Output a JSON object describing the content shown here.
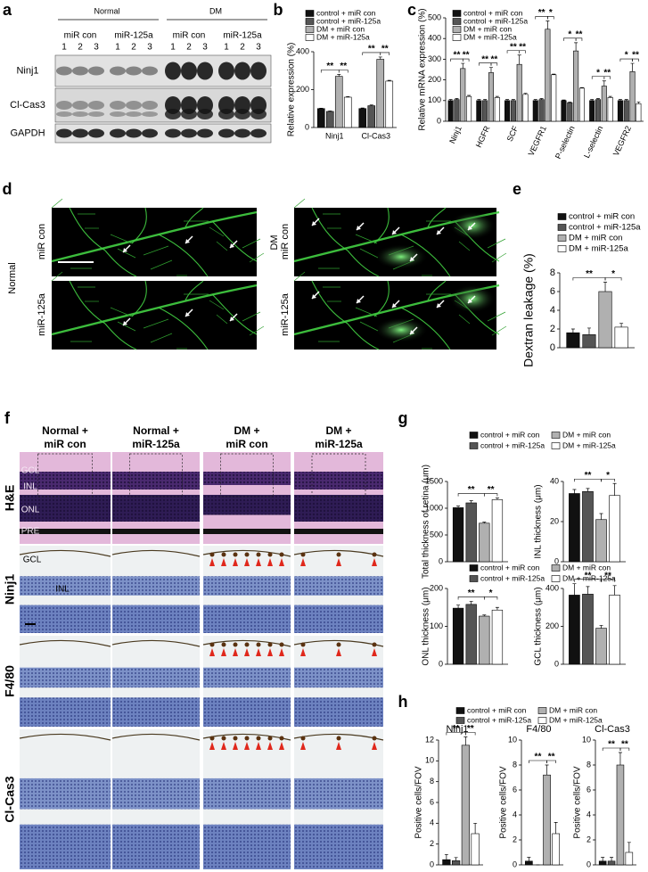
{
  "figure": {
    "panel_labels": [
      "a",
      "b",
      "c",
      "d",
      "e",
      "f",
      "g",
      "h"
    ],
    "blot": {
      "groups": [
        "Normal",
        "DM"
      ],
      "treatments": [
        "miR con",
        "miR-125a",
        "miR con",
        "miR-125a"
      ],
      "lanes": [
        "1",
        "2",
        "3",
        "1",
        "2",
        "3",
        "1",
        "2",
        "3",
        "1",
        "2",
        "3"
      ],
      "rows": [
        "Ninj1",
        "Cl-Cas3",
        "GAPDH"
      ]
    },
    "angiography": {
      "groups": [
        "Normal",
        "DM"
      ],
      "rows": [
        "miR con",
        "miR-125a"
      ]
    },
    "histology": {
      "columns": [
        [
          "Normal +",
          "miR con"
        ],
        [
          "Normal +",
          "miR-125a"
        ],
        [
          "DM +",
          "miR con"
        ],
        [
          "DM +",
          "miR-125a"
        ]
      ],
      "rows": [
        "H&E",
        "Ninj1",
        "F4/80",
        "Cl-Cas3"
      ],
      "he_layers": [
        "GCL",
        "INL",
        "ONL",
        "PRE"
      ],
      "ihc_layers": [
        "GCL",
        "INL"
      ]
    }
  },
  "chart_data": [
    {
      "type": "bar",
      "ylabel": "Relative expression (%)",
      "categories": [
        "Ninj1",
        "Cl-Cas3"
      ],
      "ylim": [
        0,
        400
      ],
      "yticks": [
        0,
        200,
        400
      ],
      "legend": "top",
      "series": [
        {
          "name": "control + miR con",
          "color": "#111111",
          "values": [
            100,
            100
          ],
          "errors": [
            2,
            3
          ]
        },
        {
          "name": "control + miR-125a",
          "color": "#555555",
          "values": [
            85,
            115
          ],
          "errors": [
            2,
            4
          ]
        },
        {
          "name": "DM + miR con",
          "color": "#b0b0b0",
          "values": [
            270,
            360
          ],
          "errors": [
            10,
            12
          ]
        },
        {
          "name": "DM + miR-125a",
          "color": "#ffffff",
          "values": [
            160,
            245
          ],
          "errors": [
            3,
            4
          ]
        }
      ],
      "significance": [
        [
          "**",
          "**"
        ],
        [
          "**",
          "**"
        ]
      ]
    },
    {
      "type": "bar",
      "ylabel": "Relative mRNA expression (%)",
      "categories": [
        "Ninj1",
        "HGFR",
        "SCF",
        "VEGFR1",
        "P-selectin",
        "L-selectin",
        "VEGFR2"
      ],
      "ylim": [
        0,
        500
      ],
      "yticks": [
        0,
        100,
        200,
        300,
        400,
        500
      ],
      "legend": "top",
      "series": [
        {
          "name": "control + miR con",
          "color": "#111111",
          "values": [
            100,
            100,
            100,
            100,
            100,
            100,
            100
          ],
          "errors": [
            5,
            5,
            5,
            5,
            3,
            5,
            5
          ]
        },
        {
          "name": "control + miR-125a",
          "color": "#555555",
          "values": [
            105,
            100,
            100,
            105,
            90,
            105,
            100
          ],
          "errors": [
            5,
            5,
            5,
            5,
            3,
            5,
            5
          ]
        },
        {
          "name": "DM + miR con",
          "color": "#b0b0b0",
          "values": [
            255,
            235,
            275,
            445,
            340,
            170,
            240
          ],
          "errors": [
            25,
            25,
            45,
            40,
            40,
            25,
            40
          ]
        },
        {
          "name": "DM + miR-125a",
          "color": "#ffffff",
          "values": [
            120,
            115,
            130,
            225,
            160,
            115,
            85
          ],
          "errors": [
            5,
            5,
            5,
            3,
            3,
            5,
            8
          ]
        }
      ],
      "significance": [
        [
          "**",
          "**"
        ],
        [
          "**",
          "**"
        ],
        [
          "**",
          "**"
        ],
        [
          "**",
          "*"
        ],
        [
          "*",
          "**"
        ],
        [
          "*",
          "**"
        ],
        [
          "*",
          "**"
        ]
      ]
    },
    {
      "type": "bar",
      "ylabel": "Dextran leakage (%)",
      "categories": [
        null
      ],
      "ylim": [
        0,
        8
      ],
      "yticks": [
        0,
        2,
        4,
        6,
        8
      ],
      "legend": "top",
      "series": [
        {
          "name": "control + miR con",
          "color": "#111111",
          "values": [
            1.6
          ],
          "errors": [
            0.4
          ]
        },
        {
          "name": "control + miR-125a",
          "color": "#555555",
          "values": [
            1.4
          ],
          "errors": [
            0.7
          ]
        },
        {
          "name": "DM + miR con",
          "color": "#b0b0b0",
          "values": [
            6.0
          ],
          "errors": [
            1.0
          ]
        },
        {
          "name": "DM + miR-125a",
          "color": "#ffffff",
          "values": [
            2.2
          ],
          "errors": [
            0.4
          ]
        }
      ],
      "significance": [
        [
          "**",
          "*"
        ]
      ]
    },
    {
      "type": "bar",
      "ylabel": "Total thickness of retina (μm)",
      "categories": [
        null
      ],
      "ylim": [
        0,
        1500
      ],
      "yticks": [
        0,
        500,
        1000,
        1500
      ],
      "legend": "top",
      "series": [
        {
          "name": "control + miR con",
          "color": "#111111",
          "values": [
            1010
          ],
          "errors": [
            30
          ]
        },
        {
          "name": "control + miR-125a",
          "color": "#555555",
          "values": [
            1100
          ],
          "errors": [
            40
          ]
        },
        {
          "name": "DM + miR con",
          "color": "#b0b0b0",
          "values": [
            720
          ],
          "errors": [
            20
          ]
        },
        {
          "name": "DM + miR-125a",
          "color": "#ffffff",
          "values": [
            1160
          ],
          "errors": [
            30
          ]
        }
      ],
      "significance": [
        [
          "**",
          "**"
        ]
      ]
    },
    {
      "type": "bar",
      "ylabel": "INL thickness (μm)",
      "categories": [
        null
      ],
      "ylim": [
        0,
        40
      ],
      "yticks": [
        0,
        20,
        40
      ],
      "legend": false,
      "series": [
        {
          "name": "control + miR con",
          "color": "#111111",
          "values": [
            34
          ],
          "errors": [
            2
          ]
        },
        {
          "name": "control + miR-125a",
          "color": "#555555",
          "values": [
            35
          ],
          "errors": [
            1.5
          ]
        },
        {
          "name": "DM + miR con",
          "color": "#b0b0b0",
          "values": [
            21
          ],
          "errors": [
            3
          ]
        },
        {
          "name": "DM + miR-125a",
          "color": "#ffffff",
          "values": [
            33
          ],
          "errors": [
            6
          ]
        }
      ],
      "significance": [
        [
          "**",
          "*"
        ]
      ]
    },
    {
      "type": "bar",
      "ylabel": "ONL thickness (μm)",
      "categories": [
        null
      ],
      "ylim": [
        0,
        200
      ],
      "yticks": [
        0,
        100,
        200
      ],
      "legend": "top",
      "series": [
        {
          "name": "control + miR con",
          "color": "#111111",
          "values": [
            148
          ],
          "errors": [
            8
          ]
        },
        {
          "name": "control + miR-125a",
          "color": "#555555",
          "values": [
            158
          ],
          "errors": [
            8
          ]
        },
        {
          "name": "DM + miR con",
          "color": "#b0b0b0",
          "values": [
            127
          ],
          "errors": [
            3
          ]
        },
        {
          "name": "DM + miR-125a",
          "color": "#ffffff",
          "values": [
            143
          ],
          "errors": [
            7
          ]
        }
      ],
      "significance": [
        [
          "**",
          "*"
        ]
      ]
    },
    {
      "type": "bar",
      "ylabel": "GCL thickness (μm)",
      "categories": [
        null
      ],
      "ylim": [
        0,
        400
      ],
      "yticks": [
        0,
        200,
        400
      ],
      "legend": false,
      "series": [
        {
          "name": "control + miR con",
          "color": "#111111",
          "values": [
            365
          ],
          "errors": [
            60
          ]
        },
        {
          "name": "control + miR-125a",
          "color": "#555555",
          "values": [
            370
          ],
          "errors": [
            40
          ]
        },
        {
          "name": "DM + miR con",
          "color": "#b0b0b0",
          "values": [
            190
          ],
          "errors": [
            15
          ]
        },
        {
          "name": "DM + miR-125a",
          "color": "#ffffff",
          "values": [
            365
          ],
          "errors": [
            50
          ]
        }
      ],
      "significance": [
        [
          "**",
          "**"
        ]
      ]
    },
    {
      "type": "bar",
      "title": "Ninj1",
      "ylabel": "Positive cells/FOV",
      "categories": [
        null
      ],
      "ylim": [
        0,
        12
      ],
      "yticks": [
        0,
        2,
        4,
        6,
        8,
        10,
        12
      ],
      "legend": "top",
      "series": [
        {
          "name": "control + miR con",
          "color": "#111111",
          "values": [
            0.5
          ],
          "errors": [
            0.5
          ]
        },
        {
          "name": "control + miR-125a",
          "color": "#555555",
          "values": [
            0.4
          ],
          "errors": [
            0.3
          ]
        },
        {
          "name": "DM + miR con",
          "color": "#b0b0b0",
          "values": [
            11.5
          ],
          "errors": [
            0.8
          ]
        },
        {
          "name": "DM + miR-125a",
          "color": "#ffffff",
          "values": [
            3
          ],
          "errors": [
            1.0
          ]
        }
      ],
      "significance": [
        [
          "**",
          "**"
        ]
      ]
    },
    {
      "type": "bar",
      "title": "F4/80",
      "ylabel": "Positive cells/FOV",
      "categories": [
        null
      ],
      "ylim": [
        0,
        10
      ],
      "yticks": [
        0,
        2,
        4,
        6,
        8,
        10
      ],
      "legend": false,
      "series": [
        {
          "name": "control + miR con",
          "color": "#111111",
          "values": [
            0.3
          ],
          "errors": [
            0.3
          ]
        },
        {
          "name": "control + miR-125a",
          "color": "#555555",
          "values": [
            0
          ],
          "errors": [
            0
          ]
        },
        {
          "name": "DM + miR con",
          "color": "#b0b0b0",
          "values": [
            7.2
          ],
          "errors": [
            0.8
          ]
        },
        {
          "name": "DM + miR-125a",
          "color": "#ffffff",
          "values": [
            2.5
          ],
          "errors": [
            0.9
          ]
        }
      ],
      "significance": [
        [
          "**",
          "**"
        ]
      ]
    },
    {
      "type": "bar",
      "title": "Cl-Cas3",
      "ylabel": "Positive cells/FOV",
      "categories": [
        null
      ],
      "ylim": [
        0,
        10
      ],
      "yticks": [
        0,
        2,
        4,
        6,
        8,
        10
      ],
      "legend": false,
      "series": [
        {
          "name": "control + miR con",
          "color": "#111111",
          "values": [
            0.3
          ],
          "errors": [
            0.3
          ]
        },
        {
          "name": "control + miR-125a",
          "color": "#555555",
          "values": [
            0.3
          ],
          "errors": [
            0.3
          ]
        },
        {
          "name": "DM + miR con",
          "color": "#b0b0b0",
          "values": [
            8
          ],
          "errors": [
            1.0
          ]
        },
        {
          "name": "DM + miR-125a",
          "color": "#ffffff",
          "values": [
            1
          ],
          "errors": [
            0.8
          ]
        }
      ],
      "significance": [
        [
          "**",
          "**"
        ]
      ]
    }
  ]
}
